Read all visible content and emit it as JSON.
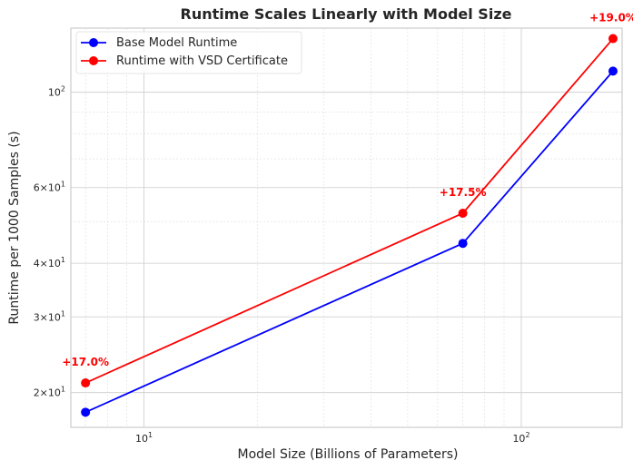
{
  "chart_data": {
    "type": "line",
    "title": "Runtime Scales Linearly with Model Size",
    "xlabel": "Model Size (Billions of Parameters)",
    "ylabel": "Runtime per 1000 Samples (s)",
    "xscale": "log",
    "yscale": "log",
    "xlim": [
      6.4,
      185
    ],
    "ylim": [
      16.6,
      141
    ],
    "x": [
      7,
      70,
      175
    ],
    "series": [
      {
        "name": "Base Model Runtime",
        "color": "#0000ff",
        "values": [
          18.0,
          44.5,
          112.0
        ]
      },
      {
        "name": "Runtime with VSD Certificate",
        "color": "#ff0000",
        "values": [
          21.06,
          52.3,
          133.3
        ]
      }
    ],
    "x_ticks": [
      {
        "value": 10,
        "base": "10",
        "exp": "1"
      },
      {
        "value": 100,
        "base": "10",
        "exp": "2"
      }
    ],
    "y_ticks": [
      {
        "value": 20,
        "mant": "2",
        "base": "10",
        "exp": "1"
      },
      {
        "value": 30,
        "mant": "3",
        "base": "10",
        "exp": "1"
      },
      {
        "value": 40,
        "mant": "4",
        "base": "10",
        "exp": "1"
      },
      {
        "value": 60,
        "mant": "6",
        "base": "10",
        "exp": "1"
      },
      {
        "value": 100,
        "mant": "",
        "base": "10",
        "exp": "2"
      }
    ],
    "annotations": [
      {
        "text": "+17.0%",
        "x": 7,
        "y": 21.06,
        "color": "#ff0000"
      },
      {
        "text": "+17.5%",
        "x": 70,
        "y": 52.3,
        "color": "#ff0000"
      },
      {
        "text": "+19.0%",
        "x": 175,
        "y": 133.3,
        "color": "#ff0000"
      }
    ],
    "grid": true,
    "legend_position": "upper-left"
  }
}
